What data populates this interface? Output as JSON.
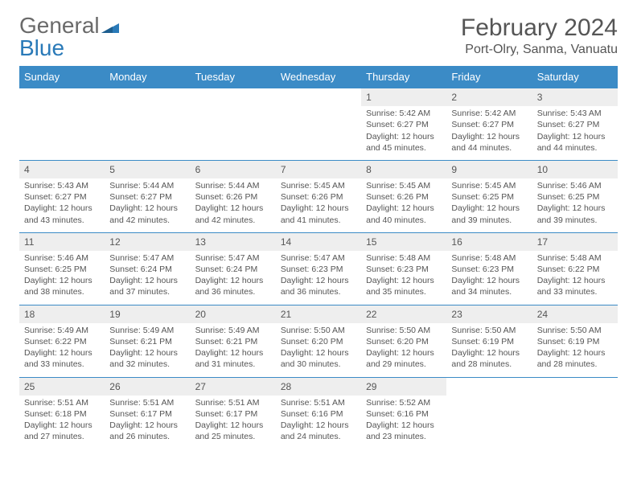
{
  "logo": {
    "word1": "General",
    "word2": "Blue"
  },
  "title": "February 2024",
  "location": "Port-Olry, Sanma, Vanuatu",
  "colors": {
    "header_bg": "#3b8bc6",
    "header_text": "#ffffff",
    "daynum_bg": "#eeeeee",
    "daynum_text": "#555555",
    "row_divider": "#3b8bc6",
    "body_text": "#555555",
    "logo_grey": "#6a6a6a",
    "logo_blue": "#2a7ab8"
  },
  "daysOfWeek": [
    "Sunday",
    "Monday",
    "Tuesday",
    "Wednesday",
    "Thursday",
    "Friday",
    "Saturday"
  ],
  "startOffset": 4,
  "days": [
    {
      "n": 1,
      "sunrise": "5:42 AM",
      "sunset": "6:27 PM",
      "dl_h": 12,
      "dl_m": 45
    },
    {
      "n": 2,
      "sunrise": "5:42 AM",
      "sunset": "6:27 PM",
      "dl_h": 12,
      "dl_m": 44
    },
    {
      "n": 3,
      "sunrise": "5:43 AM",
      "sunset": "6:27 PM",
      "dl_h": 12,
      "dl_m": 44
    },
    {
      "n": 4,
      "sunrise": "5:43 AM",
      "sunset": "6:27 PM",
      "dl_h": 12,
      "dl_m": 43
    },
    {
      "n": 5,
      "sunrise": "5:44 AM",
      "sunset": "6:27 PM",
      "dl_h": 12,
      "dl_m": 42
    },
    {
      "n": 6,
      "sunrise": "5:44 AM",
      "sunset": "6:26 PM",
      "dl_h": 12,
      "dl_m": 42
    },
    {
      "n": 7,
      "sunrise": "5:45 AM",
      "sunset": "6:26 PM",
      "dl_h": 12,
      "dl_m": 41
    },
    {
      "n": 8,
      "sunrise": "5:45 AM",
      "sunset": "6:26 PM",
      "dl_h": 12,
      "dl_m": 40
    },
    {
      "n": 9,
      "sunrise": "5:45 AM",
      "sunset": "6:25 PM",
      "dl_h": 12,
      "dl_m": 39
    },
    {
      "n": 10,
      "sunrise": "5:46 AM",
      "sunset": "6:25 PM",
      "dl_h": 12,
      "dl_m": 39
    },
    {
      "n": 11,
      "sunrise": "5:46 AM",
      "sunset": "6:25 PM",
      "dl_h": 12,
      "dl_m": 38
    },
    {
      "n": 12,
      "sunrise": "5:47 AM",
      "sunset": "6:24 PM",
      "dl_h": 12,
      "dl_m": 37
    },
    {
      "n": 13,
      "sunrise": "5:47 AM",
      "sunset": "6:24 PM",
      "dl_h": 12,
      "dl_m": 36
    },
    {
      "n": 14,
      "sunrise": "5:47 AM",
      "sunset": "6:23 PM",
      "dl_h": 12,
      "dl_m": 36
    },
    {
      "n": 15,
      "sunrise": "5:48 AM",
      "sunset": "6:23 PM",
      "dl_h": 12,
      "dl_m": 35
    },
    {
      "n": 16,
      "sunrise": "5:48 AM",
      "sunset": "6:23 PM",
      "dl_h": 12,
      "dl_m": 34
    },
    {
      "n": 17,
      "sunrise": "5:48 AM",
      "sunset": "6:22 PM",
      "dl_h": 12,
      "dl_m": 33
    },
    {
      "n": 18,
      "sunrise": "5:49 AM",
      "sunset": "6:22 PM",
      "dl_h": 12,
      "dl_m": 33
    },
    {
      "n": 19,
      "sunrise": "5:49 AM",
      "sunset": "6:21 PM",
      "dl_h": 12,
      "dl_m": 32
    },
    {
      "n": 20,
      "sunrise": "5:49 AM",
      "sunset": "6:21 PM",
      "dl_h": 12,
      "dl_m": 31
    },
    {
      "n": 21,
      "sunrise": "5:50 AM",
      "sunset": "6:20 PM",
      "dl_h": 12,
      "dl_m": 30
    },
    {
      "n": 22,
      "sunrise": "5:50 AM",
      "sunset": "6:20 PM",
      "dl_h": 12,
      "dl_m": 29
    },
    {
      "n": 23,
      "sunrise": "5:50 AM",
      "sunset": "6:19 PM",
      "dl_h": 12,
      "dl_m": 28
    },
    {
      "n": 24,
      "sunrise": "5:50 AM",
      "sunset": "6:19 PM",
      "dl_h": 12,
      "dl_m": 28
    },
    {
      "n": 25,
      "sunrise": "5:51 AM",
      "sunset": "6:18 PM",
      "dl_h": 12,
      "dl_m": 27
    },
    {
      "n": 26,
      "sunrise": "5:51 AM",
      "sunset": "6:17 PM",
      "dl_h": 12,
      "dl_m": 26
    },
    {
      "n": 27,
      "sunrise": "5:51 AM",
      "sunset": "6:17 PM",
      "dl_h": 12,
      "dl_m": 25
    },
    {
      "n": 28,
      "sunrise": "5:51 AM",
      "sunset": "6:16 PM",
      "dl_h": 12,
      "dl_m": 24
    },
    {
      "n": 29,
      "sunrise": "5:52 AM",
      "sunset": "6:16 PM",
      "dl_h": 12,
      "dl_m": 23
    }
  ],
  "labels": {
    "sunrise": "Sunrise:",
    "sunset": "Sunset:",
    "daylight": "Daylight:",
    "hours": "hours",
    "and": "and",
    "minutes": "minutes."
  }
}
